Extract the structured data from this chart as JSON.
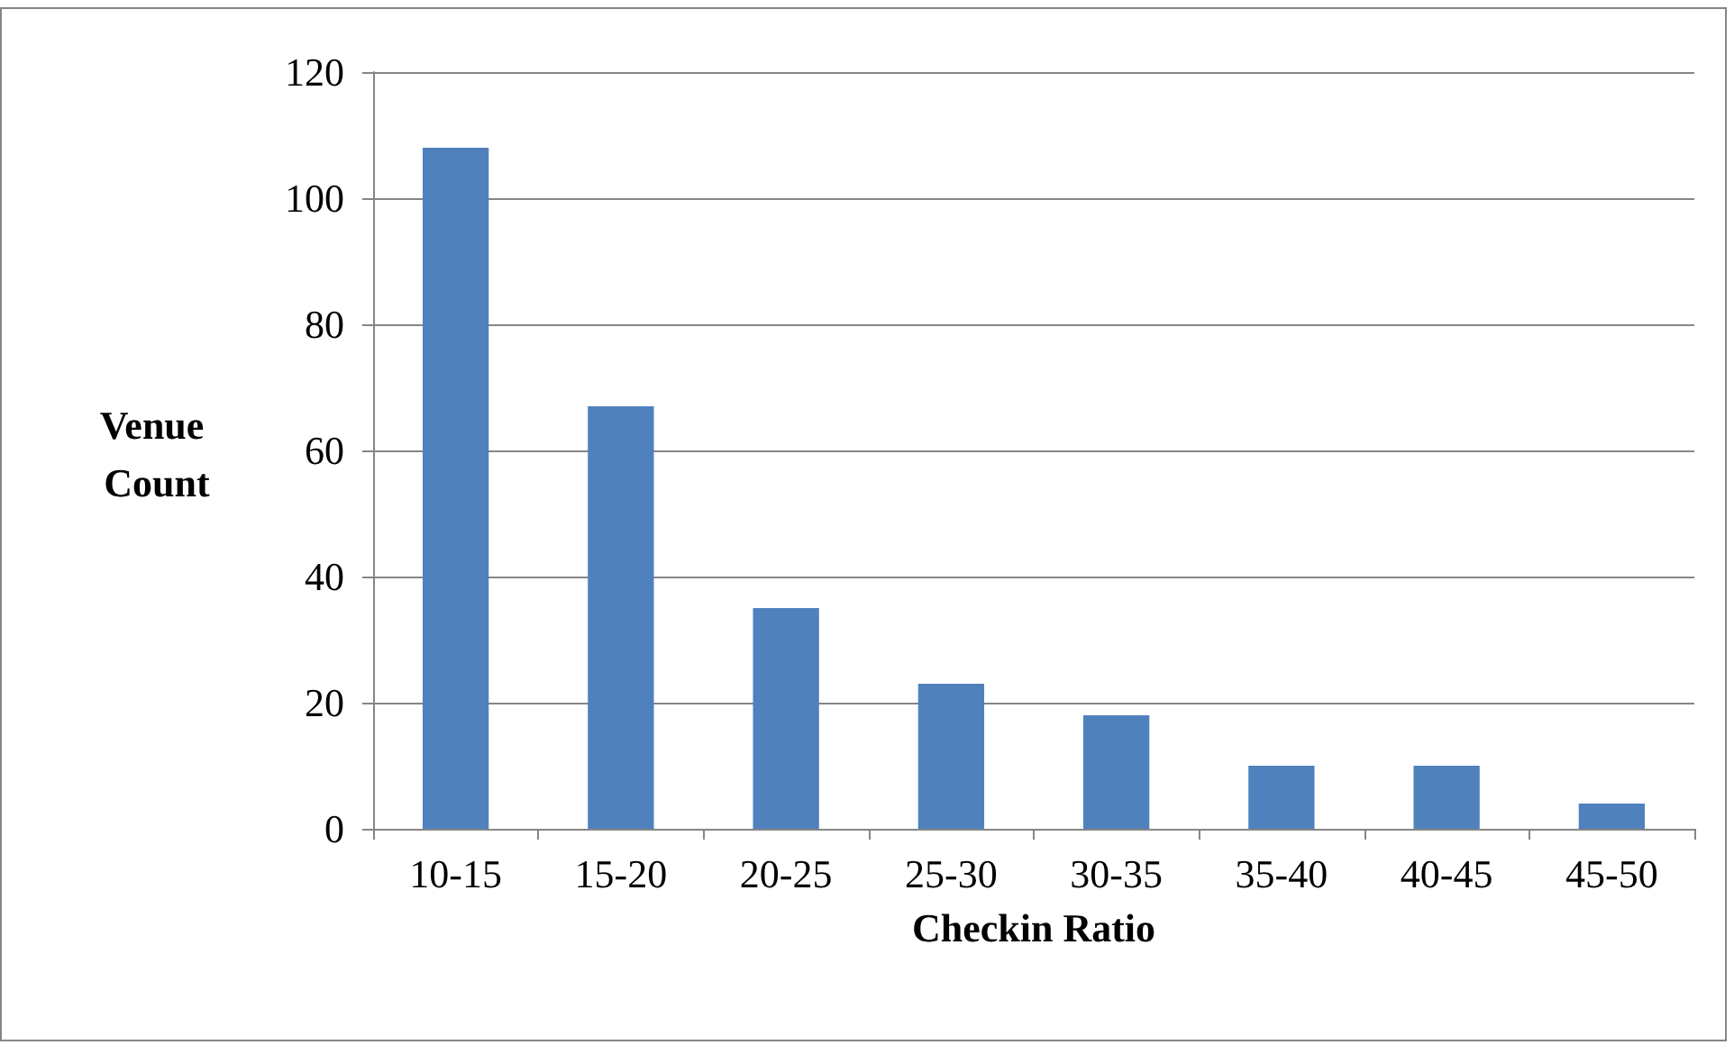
{
  "chart_data": {
    "type": "bar",
    "xlabel": "Checkin Ratio",
    "ylabel": "Venue Count",
    "categories": [
      "10-15",
      "15-20",
      "20-25",
      "25-30",
      "30-35",
      "35-40",
      "40-45",
      "45-50"
    ],
    "values": [
      108,
      67,
      35,
      23,
      18,
      10,
      10,
      4
    ],
    "color": "#4f81bd",
    "ylim": [
      0,
      120
    ],
    "yticks": [
      0,
      20,
      40,
      60,
      80,
      100,
      120
    ],
    "grid": "y"
  }
}
